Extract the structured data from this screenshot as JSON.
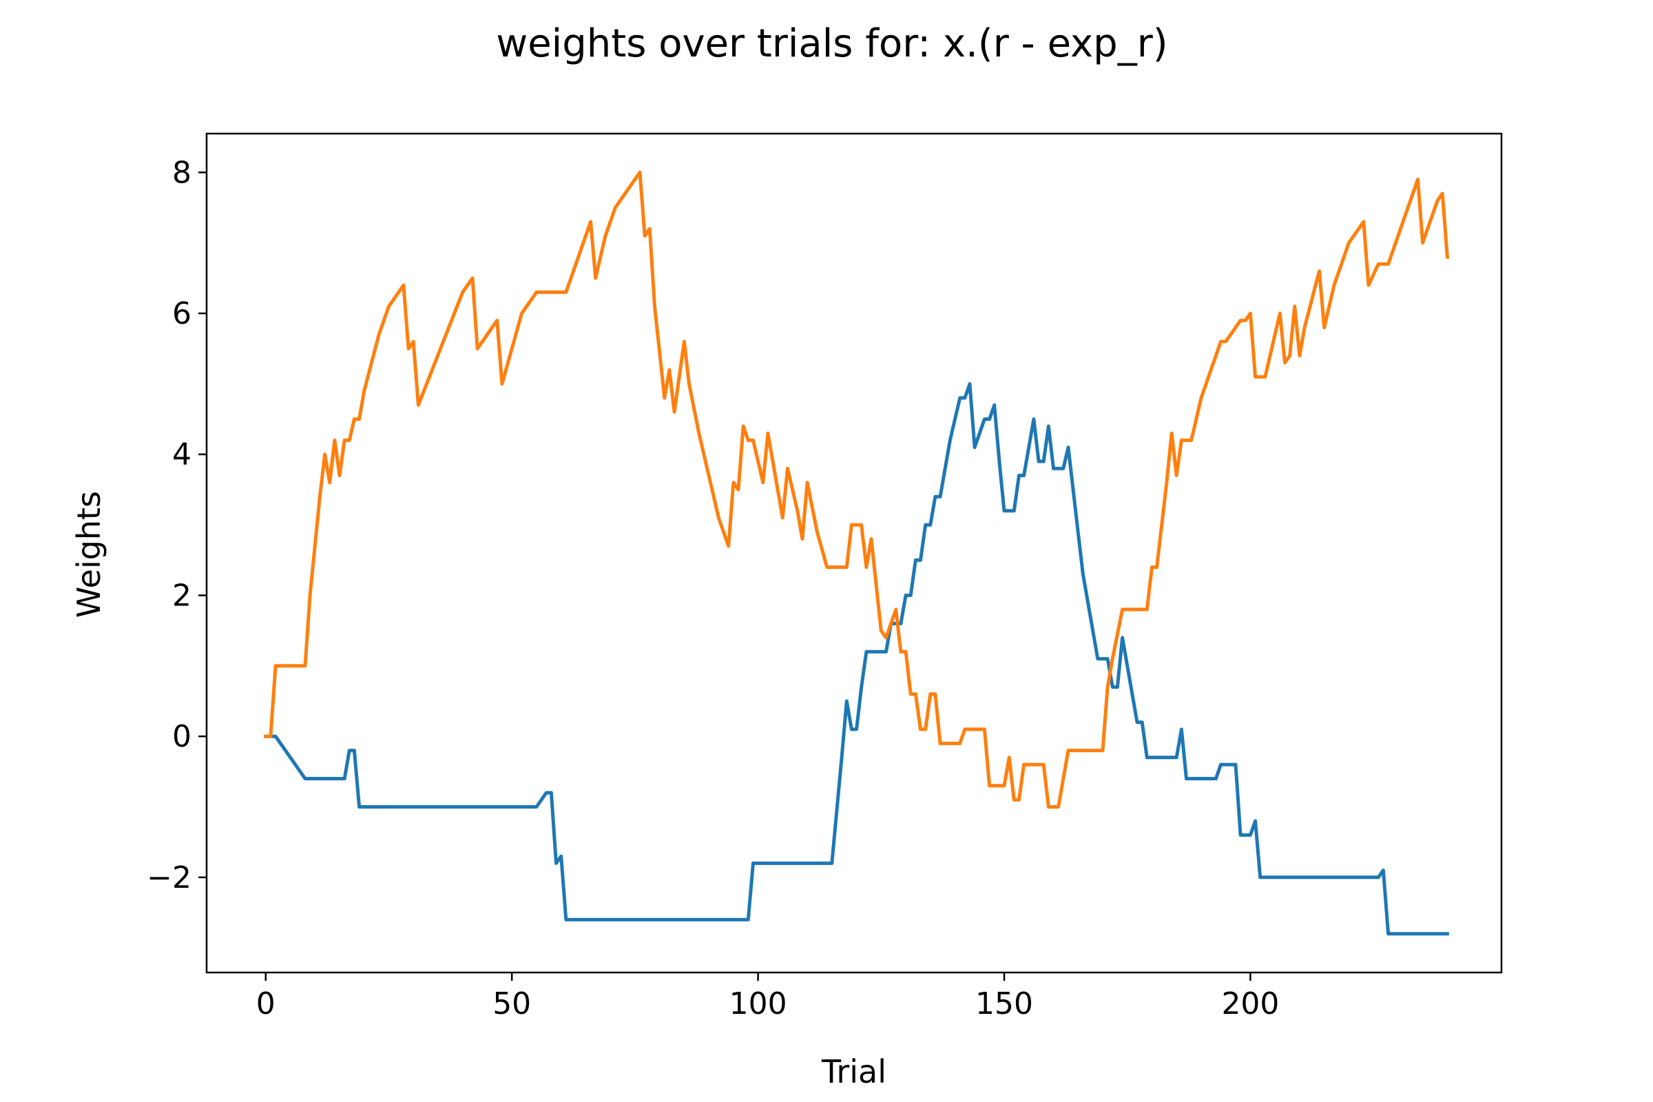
{
  "chart_data": {
    "type": "line",
    "title": "weights over trials for: x.(r - exp_r)",
    "xlabel": "Trial",
    "ylabel": "Weights",
    "xlim": [
      -12,
      251
    ],
    "ylim": [
      -3.35,
      8.55
    ],
    "xticks": [
      {
        "value": 0,
        "label": "0"
      },
      {
        "value": 50,
        "label": "50"
      },
      {
        "value": 100,
        "label": "100"
      },
      {
        "value": 150,
        "label": "150"
      },
      {
        "value": 200,
        "label": "200"
      }
    ],
    "yticks": [
      {
        "value": -2,
        "label": "−2"
      },
      {
        "value": 0,
        "label": "0"
      },
      {
        "value": 2,
        "label": "2"
      },
      {
        "value": 4,
        "label": "4"
      },
      {
        "value": 6,
        "label": "6"
      },
      {
        "value": 8,
        "label": "8"
      }
    ],
    "grid": false,
    "legend": "none",
    "series": [
      {
        "color": "#1f77b4",
        "points": [
          [
            0,
            0
          ],
          [
            2,
            0
          ],
          [
            8,
            -0.6
          ],
          [
            16,
            -0.6
          ],
          [
            17,
            -0.2
          ],
          [
            18,
            -0.2
          ],
          [
            19,
            -1.0
          ],
          [
            55,
            -1.0
          ],
          [
            57,
            -0.8
          ],
          [
            58,
            -0.8
          ],
          [
            59,
            -1.8
          ],
          [
            60,
            -1.7
          ],
          [
            61,
            -2.6
          ],
          [
            98,
            -2.6
          ],
          [
            99,
            -1.8
          ],
          [
            115,
            -1.8
          ],
          [
            117,
            -0.3
          ],
          [
            118,
            0.5
          ],
          [
            119,
            0.1
          ],
          [
            120,
            0.1
          ],
          [
            121,
            0.7
          ],
          [
            122,
            1.2
          ],
          [
            126,
            1.2
          ],
          [
            127,
            1.6
          ],
          [
            129,
            1.6
          ],
          [
            130,
            2.0
          ],
          [
            131,
            2.0
          ],
          [
            132,
            2.5
          ],
          [
            133,
            2.5
          ],
          [
            134,
            3.0
          ],
          [
            135,
            3.0
          ],
          [
            136,
            3.4
          ],
          [
            137,
            3.4
          ],
          [
            139,
            4.2
          ],
          [
            141,
            4.8
          ],
          [
            142,
            4.8
          ],
          [
            143,
            5.0
          ],
          [
            144,
            4.1
          ],
          [
            145,
            4.3
          ],
          [
            146,
            4.5
          ],
          [
            147,
            4.5
          ],
          [
            148,
            4.7
          ],
          [
            149,
            3.9
          ],
          [
            150,
            3.2
          ],
          [
            152,
            3.2
          ],
          [
            153,
            3.7
          ],
          [
            154,
            3.7
          ],
          [
            156,
            4.5
          ],
          [
            157,
            3.9
          ],
          [
            158,
            3.9
          ],
          [
            159,
            4.4
          ],
          [
            160,
            3.8
          ],
          [
            162,
            3.8
          ],
          [
            163,
            4.1
          ],
          [
            165,
            2.9
          ],
          [
            166,
            2.3
          ],
          [
            169,
            1.1
          ],
          [
            170,
            1.1
          ],
          [
            171,
            1.1
          ],
          [
            172,
            0.7
          ],
          [
            173,
            0.7
          ],
          [
            174,
            1.4
          ],
          [
            177,
            0.2
          ],
          [
            178,
            0.2
          ],
          [
            179,
            -0.3
          ],
          [
            185,
            -0.3
          ],
          [
            186,
            0.1
          ],
          [
            187,
            -0.6
          ],
          [
            193,
            -0.6
          ],
          [
            194,
            -0.4
          ],
          [
            197,
            -0.4
          ],
          [
            198,
            -1.4
          ],
          [
            200,
            -1.4
          ],
          [
            201,
            -1.2
          ],
          [
            202,
            -2.0
          ],
          [
            226,
            -2.0
          ],
          [
            227,
            -1.9
          ],
          [
            228,
            -2.8
          ],
          [
            240,
            -2.8
          ]
        ]
      },
      {
        "color": "#ff7f0e",
        "points": [
          [
            0,
            0
          ],
          [
            1,
            0
          ],
          [
            2,
            1.0
          ],
          [
            8,
            1.0
          ],
          [
            9,
            2.0
          ],
          [
            11,
            3.4
          ],
          [
            12,
            4.0
          ],
          [
            13,
            3.6
          ],
          [
            14,
            4.2
          ],
          [
            15,
            3.7
          ],
          [
            16,
            4.2
          ],
          [
            17,
            4.2
          ],
          [
            18,
            4.5
          ],
          [
            19,
            4.5
          ],
          [
            20,
            4.9
          ],
          [
            23,
            5.7
          ],
          [
            25,
            6.1
          ],
          [
            28,
            6.4
          ],
          [
            29,
            5.5
          ],
          [
            30,
            5.6
          ],
          [
            31,
            4.7
          ],
          [
            40,
            6.3
          ],
          [
            42,
            6.5
          ],
          [
            43,
            5.5
          ],
          [
            47,
            5.9
          ],
          [
            48,
            5.0
          ],
          [
            52,
            6.0
          ],
          [
            55,
            6.3
          ],
          [
            61,
            6.3
          ],
          [
            66,
            7.3
          ],
          [
            67,
            6.5
          ],
          [
            69,
            7.1
          ],
          [
            71,
            7.5
          ],
          [
            76,
            8.0
          ],
          [
            77,
            7.1
          ],
          [
            78,
            7.2
          ],
          [
            79,
            6.1
          ],
          [
            81,
            4.8
          ],
          [
            82,
            5.2
          ],
          [
            83,
            4.6
          ],
          [
            84,
            5.1
          ],
          [
            85,
            5.6
          ],
          [
            86,
            5.0
          ],
          [
            88,
            4.3
          ],
          [
            92,
            3.1
          ],
          [
            94,
            2.7
          ],
          [
            95,
            3.6
          ],
          [
            96,
            3.5
          ],
          [
            97,
            4.4
          ],
          [
            98,
            4.2
          ],
          [
            99,
            4.2
          ],
          [
            101,
            3.6
          ],
          [
            102,
            4.3
          ],
          [
            105,
            3.1
          ],
          [
            106,
            3.8
          ],
          [
            108,
            3.2
          ],
          [
            109,
            2.8
          ],
          [
            110,
            3.6
          ],
          [
            112,
            2.9
          ],
          [
            114,
            2.4
          ],
          [
            118,
            2.4
          ],
          [
            119,
            3.0
          ],
          [
            121,
            3.0
          ],
          [
            122,
            2.4
          ],
          [
            123,
            2.8
          ],
          [
            125,
            1.5
          ],
          [
            126,
            1.4
          ],
          [
            128,
            1.8
          ],
          [
            129,
            1.2
          ],
          [
            130,
            1.2
          ],
          [
            131,
            0.6
          ],
          [
            132,
            0.6
          ],
          [
            133,
            0.1
          ],
          [
            134,
            0.1
          ],
          [
            135,
            0.6
          ],
          [
            136,
            0.6
          ],
          [
            137,
            -0.1
          ],
          [
            141,
            -0.1
          ],
          [
            142,
            0.1
          ],
          [
            146,
            0.1
          ],
          [
            147,
            -0.7
          ],
          [
            150,
            -0.7
          ],
          [
            151,
            -0.3
          ],
          [
            152,
            -0.9
          ],
          [
            153,
            -0.9
          ],
          [
            154,
            -0.4
          ],
          [
            158,
            -0.4
          ],
          [
            159,
            -1.0
          ],
          [
            161,
            -1.0
          ],
          [
            163,
            -0.2
          ],
          [
            170,
            -0.2
          ],
          [
            171,
            0.7
          ],
          [
            172,
            1.1
          ],
          [
            174,
            1.8
          ],
          [
            179,
            1.8
          ],
          [
            180,
            2.4
          ],
          [
            181,
            2.4
          ],
          [
            183,
            3.6
          ],
          [
            184,
            4.3
          ],
          [
            185,
            3.7
          ],
          [
            186,
            4.2
          ],
          [
            188,
            4.2
          ],
          [
            190,
            4.8
          ],
          [
            194,
            5.6
          ],
          [
            195,
            5.6
          ],
          [
            198,
            5.9
          ],
          [
            199,
            5.9
          ],
          [
            200,
            6.0
          ],
          [
            201,
            5.1
          ],
          [
            203,
            5.1
          ],
          [
            206,
            6.0
          ],
          [
            207,
            5.3
          ],
          [
            208,
            5.4
          ],
          [
            209,
            6.1
          ],
          [
            210,
            5.4
          ],
          [
            211,
            5.8
          ],
          [
            214,
            6.6
          ],
          [
            215,
            5.8
          ],
          [
            217,
            6.4
          ],
          [
            220,
            7.0
          ],
          [
            223,
            7.3
          ],
          [
            224,
            6.4
          ],
          [
            226,
            6.7
          ],
          [
            228,
            6.7
          ],
          [
            234,
            7.9
          ],
          [
            235,
            7.0
          ],
          [
            238,
            7.6
          ],
          [
            239,
            7.7
          ],
          [
            240,
            6.8
          ]
        ]
      }
    ]
  }
}
